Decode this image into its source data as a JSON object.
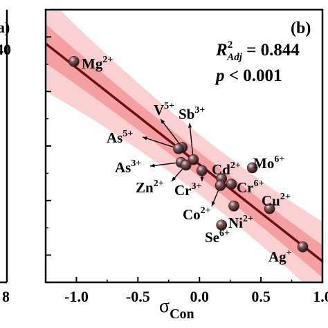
{
  "left_panel": {
    "label_fragment": "a)",
    "value_fragment": "40",
    "tick_fragment": "8"
  },
  "chart_data": {
    "type": "scatter",
    "panel_label": "(b)",
    "xlabel": "σ",
    "xlabel_sub": "Con",
    "xlim": [
      -1.25,
      1.0
    ],
    "ylim": [
      0.0,
      1.0
    ],
    "xticks": [
      -1.0,
      -0.5,
      0.0,
      0.5,
      1.0
    ],
    "xtick_labels": [
      "-1.0",
      "-0.5",
      "0.0",
      "0.5",
      "1.0"
    ],
    "yticks": [
      0.1,
      0.3,
      0.5,
      0.7,
      0.9
    ],
    "ytick_labels": [],
    "stats": {
      "r2_letter": "R",
      "r2_sup": "2",
      "r2_sub": "Adj",
      "r2_value": " = 0.844",
      "p_letter": "p",
      "p_value": " < 0.001"
    },
    "fit": {
      "slope": -0.355,
      "intercept": 0.432
    },
    "band_inner_halfwidth": 0.045,
    "band_outer_halfwidth": 0.11,
    "colors": {
      "fit_line": "#6b0f12",
      "inner_band": "#f4a0a3",
      "outer_band": "#fbd0d2",
      "marker": "#5a3a3c"
    },
    "points": [
      {
        "name": "Mg",
        "charge": "2+",
        "x": -1.02,
        "y": 0.81
      },
      {
        "name": "V",
        "charge": "5+",
        "x": -0.14,
        "y": 0.495
      },
      {
        "name": "Sb",
        "charge": "3+",
        "x": -0.05,
        "y": 0.45
      },
      {
        "name": "As",
        "charge": "5+",
        "x": -0.17,
        "y": 0.49
      },
      {
        "name": "As",
        "charge": "3+",
        "x": -0.15,
        "y": 0.44
      },
      {
        "name": "Zn",
        "charge": "2+",
        "x": -0.11,
        "y": 0.43
      },
      {
        "name": "Cr",
        "charge": "3+",
        "x": 0.02,
        "y": 0.41
      },
      {
        "name": "Cd",
        "charge": "2+",
        "x": 0.18,
        "y": 0.38
      },
      {
        "name": "Cr",
        "charge": "6+",
        "x": 0.26,
        "y": 0.36
      },
      {
        "name": "Mo",
        "charge": "6+",
        "x": 0.43,
        "y": 0.42
      },
      {
        "name": "Co",
        "charge": "2+",
        "x": 0.17,
        "y": 0.355
      },
      {
        "name": "Ni",
        "charge": "2+",
        "x": 0.28,
        "y": 0.28
      },
      {
        "name": "Cu",
        "charge": "2+",
        "x": 0.57,
        "y": 0.27
      },
      {
        "name": "Se",
        "charge": "6+",
        "x": 0.18,
        "y": 0.21
      },
      {
        "name": "Ag",
        "charge": "+",
        "x": 0.84,
        "y": 0.13
      }
    ]
  }
}
